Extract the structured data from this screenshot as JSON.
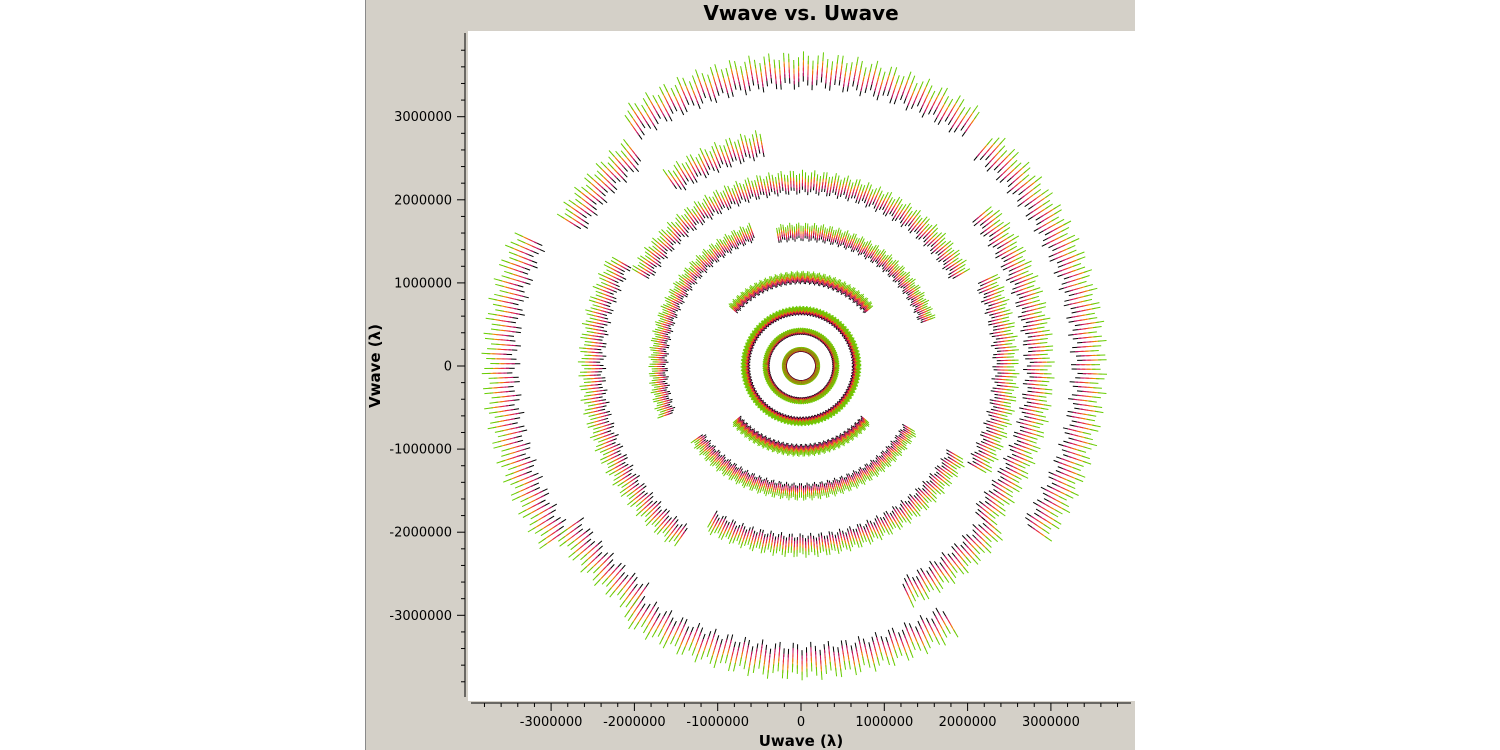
{
  "chart_data": {
    "type": "scatter",
    "title": "Vwave vs. Uwave",
    "xlabel": "Uwave (λ)",
    "ylabel": "Vwave (λ)",
    "xlim": [
      -3850000,
      3950000
    ],
    "ylim": [
      -4000000,
      4000000
    ],
    "x_ticks": [
      -3000000,
      -2000000,
      -1000000,
      0,
      1000000,
      2000000,
      3000000
    ],
    "x_tick_labels": [
      "-3000000",
      "-2000000",
      "-1000000",
      "0",
      "1000000",
      "2000000",
      "3000000"
    ],
    "y_ticks": [
      3000000,
      2000000,
      1000000,
      0,
      -1000000,
      -2000000,
      -3000000
    ],
    "y_tick_labels": [
      "3000000",
      "2000000",
      "1000000",
      "0",
      "-1000000",
      "-2000000",
      "-3000000"
    ],
    "grid": false,
    "series_colors": [
      "#000000",
      "#cc1166",
      "#ee3333",
      "#ee8800",
      "#66cc00"
    ],
    "point_groups": [
      {
        "arc": "outer-top",
        "radius": 3550000,
        "start_deg": 55,
        "end_deg": 125
      },
      {
        "arc": "outer-top-left",
        "radius": 3250000,
        "start_deg": 128,
        "end_deg": 148
      },
      {
        "arc": "outer-right",
        "radius": 3450000,
        "start_deg": -35,
        "end_deg": 50
      },
      {
        "arc": "outer-left",
        "radius": 3600000,
        "start_deg": 155,
        "end_deg": 215
      },
      {
        "arc": "outer-bottom",
        "radius": 3550000,
        "start_deg": 235,
        "end_deg": 300
      },
      {
        "arc": "outer-bottom-left",
        "radius": 3400000,
        "start_deg": 215,
        "end_deg": 235
      },
      {
        "arc": "ring-2-top",
        "radius": 2700000,
        "start_deg": 100,
        "end_deg": 125
      },
      {
        "arc": "ring-2-right",
        "radius": 2850000,
        "start_deg": -40,
        "end_deg": 40
      },
      {
        "arc": "ring-2-bottom",
        "radius": 3000000,
        "start_deg": 295,
        "end_deg": 320
      },
      {
        "arc": "ring-3",
        "radius": 2200000,
        "start_deg": 30,
        "end_deg": 150
      },
      {
        "arc": "ring-3-left",
        "radius": 2500000,
        "start_deg": 150,
        "end_deg": 235
      },
      {
        "arc": "ring-3-bottom",
        "radius": 2150000,
        "start_deg": 240,
        "end_deg": 330
      },
      {
        "arc": "ring-3-right",
        "radius": 2450000,
        "start_deg": -30,
        "end_deg": 25
      },
      {
        "arc": "ring-4",
        "radius": 1600000,
        "start_deg": 20,
        "end_deg": 100
      },
      {
        "arc": "ring-4-left",
        "radius": 1700000,
        "start_deg": 110,
        "end_deg": 200
      },
      {
        "arc": "ring-4-bottom",
        "radius": 1500000,
        "start_deg": 215,
        "end_deg": 330
      },
      {
        "arc": "ring-5",
        "radius": 1050000,
        "start_deg": 40,
        "end_deg": 140
      },
      {
        "arc": "ring-5-bottom",
        "radius": 1000000,
        "start_deg": 220,
        "end_deg": 320
      },
      {
        "arc": "ring-6",
        "radius": 650000,
        "start_deg": 0,
        "end_deg": 360
      },
      {
        "arc": "ring-7",
        "radius": 400000,
        "start_deg": 0,
        "end_deg": 360
      },
      {
        "arc": "ring-8",
        "radius": 180000,
        "start_deg": 0,
        "end_deg": 360
      }
    ]
  }
}
